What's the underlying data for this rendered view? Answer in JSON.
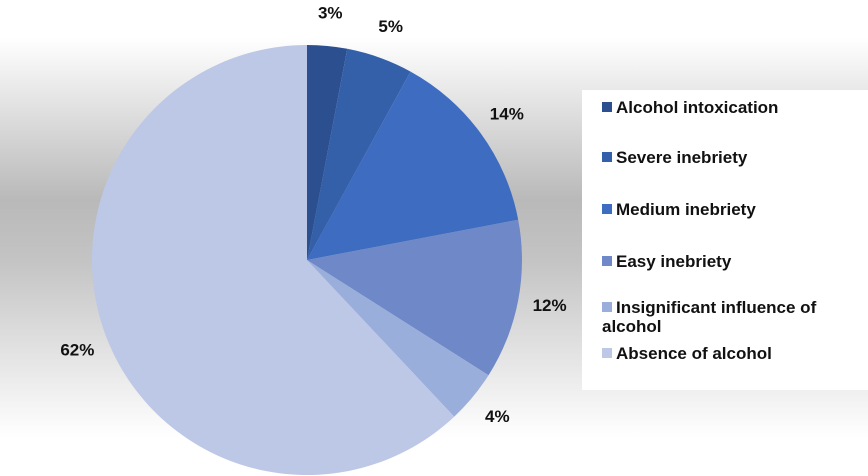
{
  "chart_data": {
    "type": "pie",
    "categories": [
      "Alcohol intoxication",
      "Severe inebriety",
      "Medium inebriety",
      "Easy inebriety",
      "Insignificant influence of alcohol",
      "Absence of alcohol"
    ],
    "values": [
      3,
      5,
      14,
      12,
      4,
      62
    ],
    "value_labels": [
      "3%",
      "5%",
      "14%",
      "12%",
      "4%",
      "62%"
    ],
    "colors": [
      "#2b4f8f",
      "#3460aa",
      "#3d6cc0",
      "#6f88c8",
      "#9aaedc",
      "#bcc8e6"
    ],
    "legend": "right"
  }
}
